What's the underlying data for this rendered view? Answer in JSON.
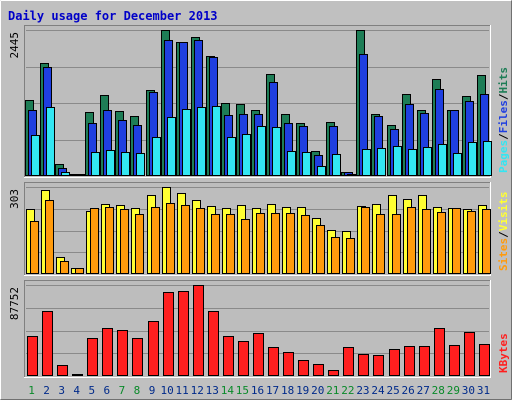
{
  "chart_data": {
    "type": "bar",
    "title": "Daily usage for December 2013",
    "categories": [
      "1",
      "2",
      "3",
      "4",
      "5",
      "6",
      "7",
      "8",
      "9",
      "10",
      "11",
      "12",
      "13",
      "14",
      "15",
      "16",
      "17",
      "18",
      "19",
      "20",
      "21",
      "22",
      "23",
      "24",
      "25",
      "26",
      "27",
      "28",
      "29",
      "30",
      "31"
    ],
    "weekend_days": [
      "1",
      "7",
      "8",
      "14",
      "15",
      "21",
      "22",
      "28",
      "29"
    ],
    "panels": [
      {
        "id": "hits_panel",
        "ymax": 2445,
        "ymax_label": "2445",
        "legend": [
          "Pages",
          "/",
          "Files",
          "/",
          "Hits"
        ],
        "series": [
          {
            "name": "Hits",
            "color": "#1e7d56",
            "values": [
              1280,
              1890,
              200,
              40,
              1080,
              1360,
              1090,
              1010,
              1440,
              2445,
              2250,
              2330,
              2010,
              1230,
              1210,
              1100,
              1700,
              1040,
              890,
              420,
              910,
              70,
              2445,
              1040,
              860,
              1380,
              1110,
              1620,
              1100,
              1340,
              1690
            ]
          },
          {
            "name": "Files",
            "color": "#1f3fe0",
            "values": [
              1110,
              1820,
              130,
              30,
              880,
              1110,
              930,
              850,
              1400,
              2280,
              2250,
              2280,
              1990,
              1020,
              1040,
              1040,
              1580,
              890,
              840,
              360,
              840,
              60,
              2050,
              1000,
              780,
              1210,
              1050,
              1450,
              1100,
              1250,
              1380
            ]
          },
          {
            "name": "Pages",
            "color": "#33e6f2",
            "values": [
              690,
              1150,
              70,
              30,
              400,
              430,
              400,
              380,
              660,
              980,
              1130,
              1150,
              1180,
              660,
              700,
              830,
              820,
              420,
              400,
              170,
              370,
              40,
              460,
              470,
              500,
              460,
              480,
              530,
              390,
              570,
              580
            ]
          }
        ]
      },
      {
        "id": "visits_panel",
        "ymax": 303,
        "ymax_label": "303",
        "legend": [
          "Sites",
          "/",
          "Visits"
        ],
        "series": [
          {
            "name": "Visits",
            "color": "#ffff33",
            "values": [
              225,
              293,
              60,
              22,
              220,
              245,
              240,
              230,
              275,
              303,
              283,
              258,
              238,
              230,
              240,
              230,
              245,
              232,
              232,
              195,
              152,
              150,
              238,
              243,
              275,
              262,
              275,
              232,
              230,
              228,
              242
            ]
          },
          {
            "name": "Sites",
            "color": "#ff9b0d",
            "values": [
              186,
              256,
              44,
              20,
              230,
              235,
              228,
              210,
              235,
              248,
              240,
              230,
              208,
              208,
              190,
              212,
              213,
              213,
              205,
              170,
              130,
              125,
              232,
              208,
              210,
              232,
              225,
              215,
              230,
              218,
              225
            ]
          }
        ]
      },
      {
        "id": "kbytes_panel",
        "ymax": 87752,
        "ymax_label": "87752",
        "legend": [
          "KBytes"
        ],
        "series": [
          {
            "name": "KBytes",
            "color": "#ff1f1f",
            "values": [
              38800,
              62600,
              10500,
              2100,
              36500,
              46300,
              44100,
              36200,
              52800,
              81000,
              82300,
              87752,
              62600,
              38800,
              33600,
              41000,
              28000,
              23100,
              15700,
              11400,
              6100,
              28000,
              21400,
              20700,
              26400,
              29200,
              28500,
              46300,
              29600,
              42700,
              31300
            ]
          }
        ]
      }
    ]
  },
  "colors": {
    "background": "#c0c0c0",
    "plot_background": "#bdbdbd",
    "title": "#0000c8",
    "day_weekday": "#002a8a",
    "day_weekend": "#0a8a2a",
    "grid": "#8a8a8a",
    "axis_label": "#000000",
    "legend_slash": "#000000"
  }
}
